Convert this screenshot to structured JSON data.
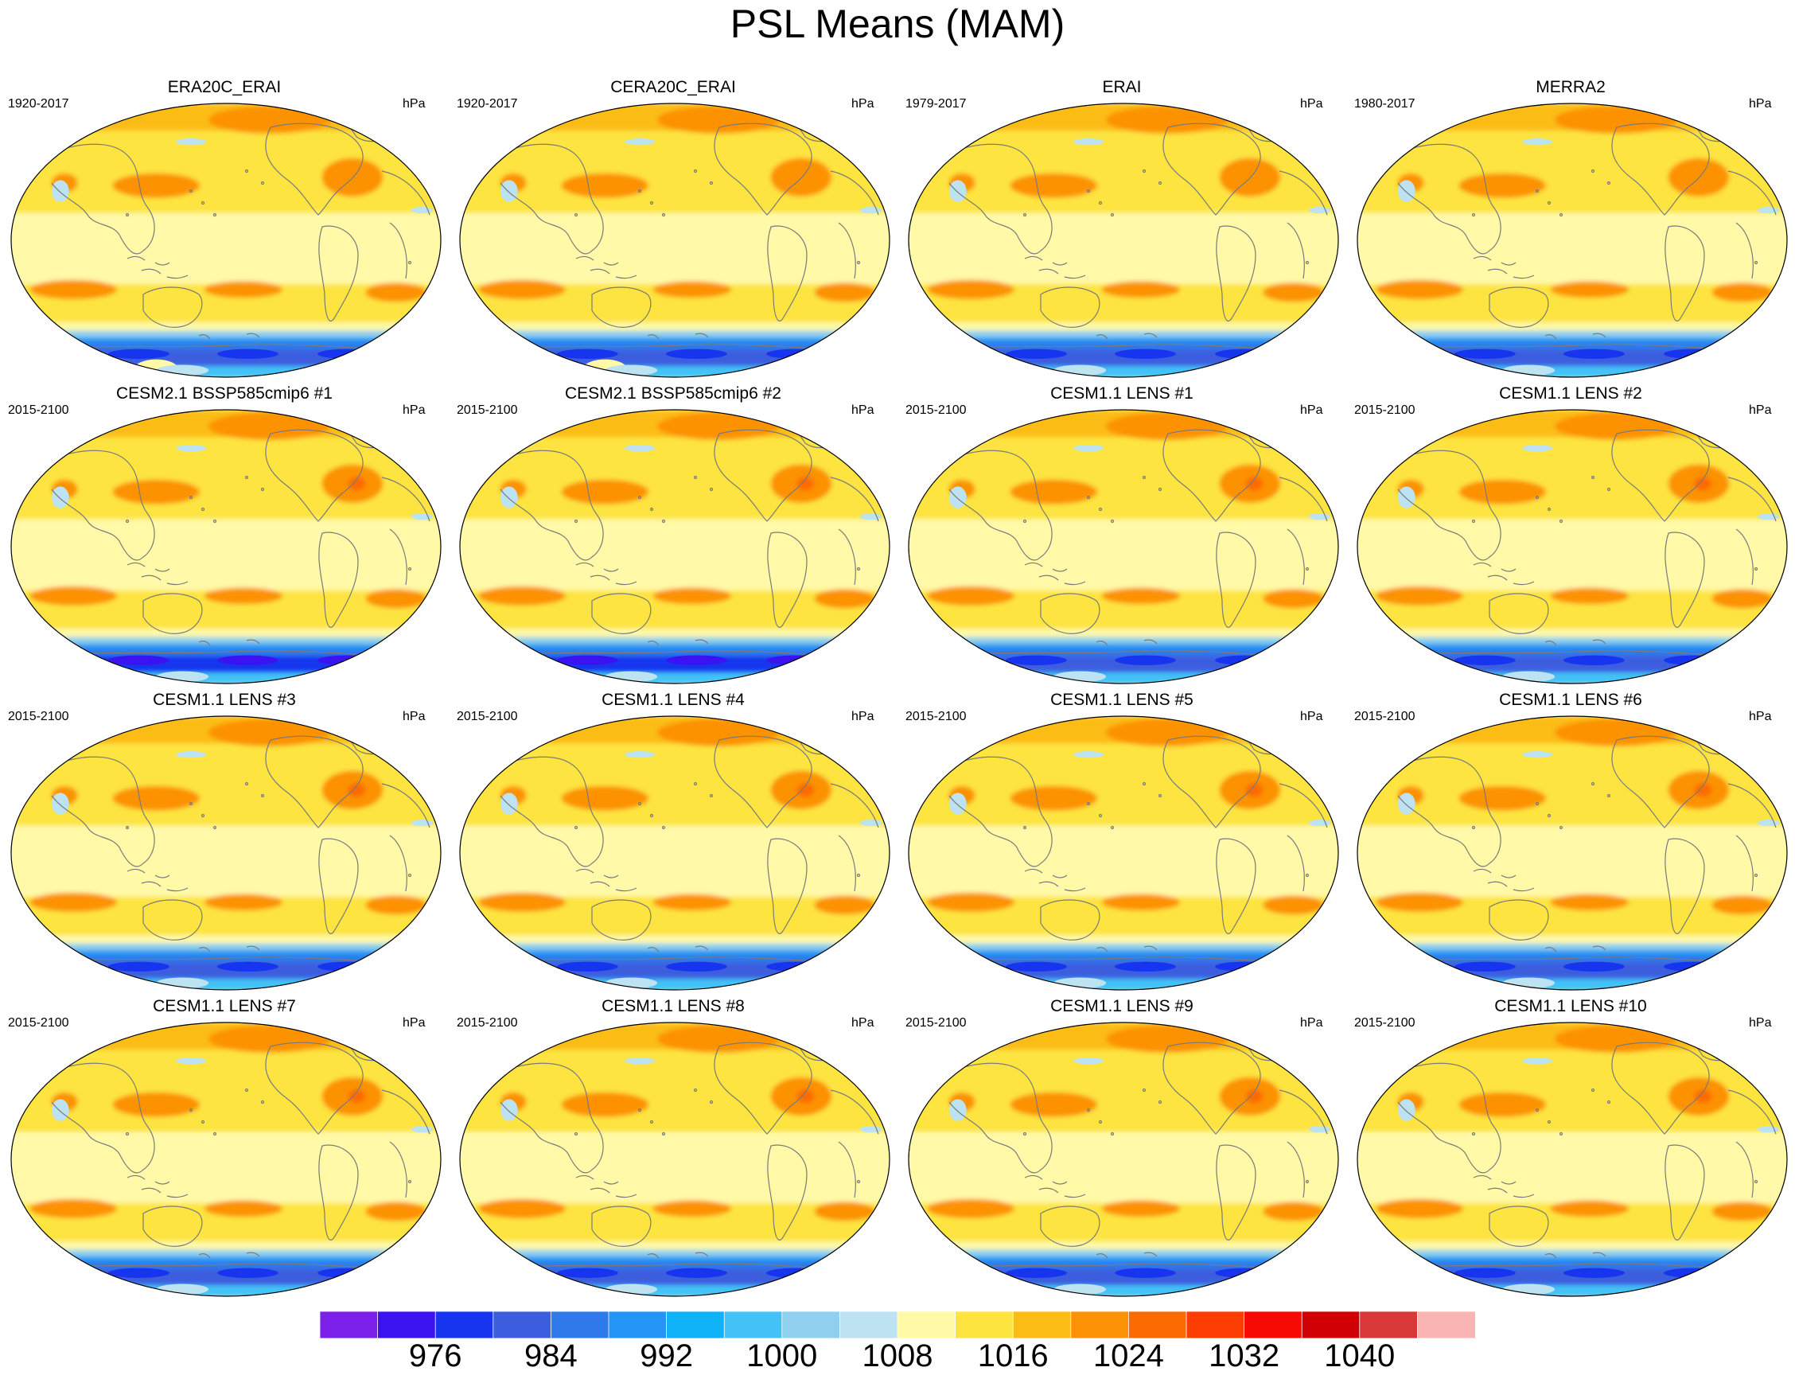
{
  "title": "PSL Means (MAM)",
  "units": "hPa",
  "panels": [
    {
      "title": "ERA20C_ERAI",
      "years": "1920-2017",
      "variant": 0
    },
    {
      "title": "CERA20C_ERAI",
      "years": "1920-2017",
      "variant": 0
    },
    {
      "title": "ERAI",
      "years": "1979-2017",
      "variant": 1
    },
    {
      "title": "MERRA2",
      "years": "1980-2017",
      "variant": 1
    },
    {
      "title": "CESM2.1 BSSP585cmip6 #1",
      "years": "2015-2100",
      "variant": 2
    },
    {
      "title": "CESM2.1 BSSP585cmip6 #2",
      "years": "2015-2100",
      "variant": 2
    },
    {
      "title": "CESM1.1 LENS #1",
      "years": "2015-2100",
      "variant": 3
    },
    {
      "title": "CESM1.1 LENS #2",
      "years": "2015-2100",
      "variant": 3
    },
    {
      "title": "CESM1.1 LENS #3",
      "years": "2015-2100",
      "variant": 3
    },
    {
      "title": "CESM1.1 LENS #4",
      "years": "2015-2100",
      "variant": 3
    },
    {
      "title": "CESM1.1 LENS #5",
      "years": "2015-2100",
      "variant": 3
    },
    {
      "title": "CESM1.1 LENS #6",
      "years": "2015-2100",
      "variant": 3
    },
    {
      "title": "CESM1.1 LENS #7",
      "years": "2015-2100",
      "variant": 3
    },
    {
      "title": "CESM1.1 LENS #8",
      "years": "2015-2100",
      "variant": 3
    },
    {
      "title": "CESM1.1 LENS #9",
      "years": "2015-2100",
      "variant": 3
    },
    {
      "title": "CESM1.1 LENS #10",
      "years": "2015-2100",
      "variant": 3
    }
  ],
  "colorbar": {
    "colors": [
      "#7b20e8",
      "#3a13f0",
      "#1735ee",
      "#3d5ddf",
      "#2f79ea",
      "#2595f5",
      "#0fb2f7",
      "#43c3f7",
      "#8fd0ee",
      "#bde2f2",
      "#fff9a8",
      "#fde43f",
      "#fcbc16",
      "#fc9205",
      "#fc6a02",
      "#fb3d03",
      "#f50b04",
      "#d10005",
      "#d93838",
      "#fbb4b4"
    ],
    "tick_labels": [
      "976",
      "984",
      "992",
      "1000",
      "1008",
      "1016",
      "1024",
      "1032",
      "1040"
    ],
    "tick_boundaries": [
      2,
      4,
      6,
      8,
      10,
      12,
      14,
      16,
      18
    ]
  },
  "map_style": {
    "coast_color": "#7a7a7a",
    "ocean_base": "#fff39a"
  }
}
